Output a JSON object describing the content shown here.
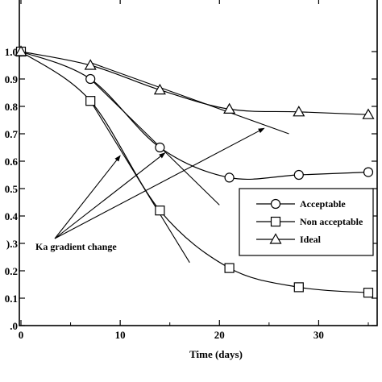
{
  "chart_data": {
    "type": "line",
    "title": "",
    "xlabel": "Time (days)",
    "ylabel": "",
    "xlim": [
      0,
      37
    ],
    "ylim": [
      0,
      1.02
    ],
    "x_ticks": [
      0,
      10,
      20,
      30
    ],
    "x_tick_labels": [
      "0",
      "10",
      "20",
      "30"
    ],
    "y_ticks": [
      0,
      0.1,
      0.2,
      0.3,
      0.4,
      0.5,
      0.6,
      0.7,
      0.8,
      0.9,
      1.0
    ],
    "y_tick_labels": [
      ".0",
      "0.1",
      "0.2",
      ").3",
      "0.4",
      "0.5",
      "0.6",
      "0.7",
      "0.8",
      "0.9",
      "1.0"
    ],
    "grid": false,
    "legend_position": "lower-right",
    "series": [
      {
        "name": "Acceptable",
        "marker": "circle",
        "x": [
          0,
          7,
          14,
          21,
          28,
          35
        ],
        "y": [
          1.0,
          0.9,
          0.65,
          0.54,
          0.55,
          0.56
        ]
      },
      {
        "name": "Non acceptable",
        "marker": "square",
        "x": [
          0,
          7,
          14,
          21,
          28,
          35
        ],
        "y": [
          1.0,
          0.82,
          0.42,
          0.21,
          0.14,
          0.12
        ]
      },
      {
        "name": "Ideal",
        "marker": "triangle",
        "x": [
          0,
          7,
          14,
          21,
          28,
          35
        ],
        "y": [
          1.0,
          0.95,
          0.86,
          0.79,
          0.78,
          0.77
        ]
      }
    ],
    "tangent_lines": [
      {
        "x": [
          7,
          20
        ],
        "y": [
          0.9,
          0.44
        ]
      },
      {
        "x": [
          7,
          17
        ],
        "y": [
          0.82,
          0.23
        ]
      },
      {
        "x": [
          7,
          27
        ],
        "y": [
          0.96,
          0.7
        ]
      }
    ],
    "annotation": {
      "text": "Ka gradient change",
      "anchor": {
        "x": 2,
        "y": 0.3
      },
      "arrow_targets": [
        {
          "x": 10,
          "y": 0.62
        },
        {
          "x": 14.5,
          "y": 0.63
        },
        {
          "x": 24.5,
          "y": 0.72
        }
      ]
    }
  }
}
